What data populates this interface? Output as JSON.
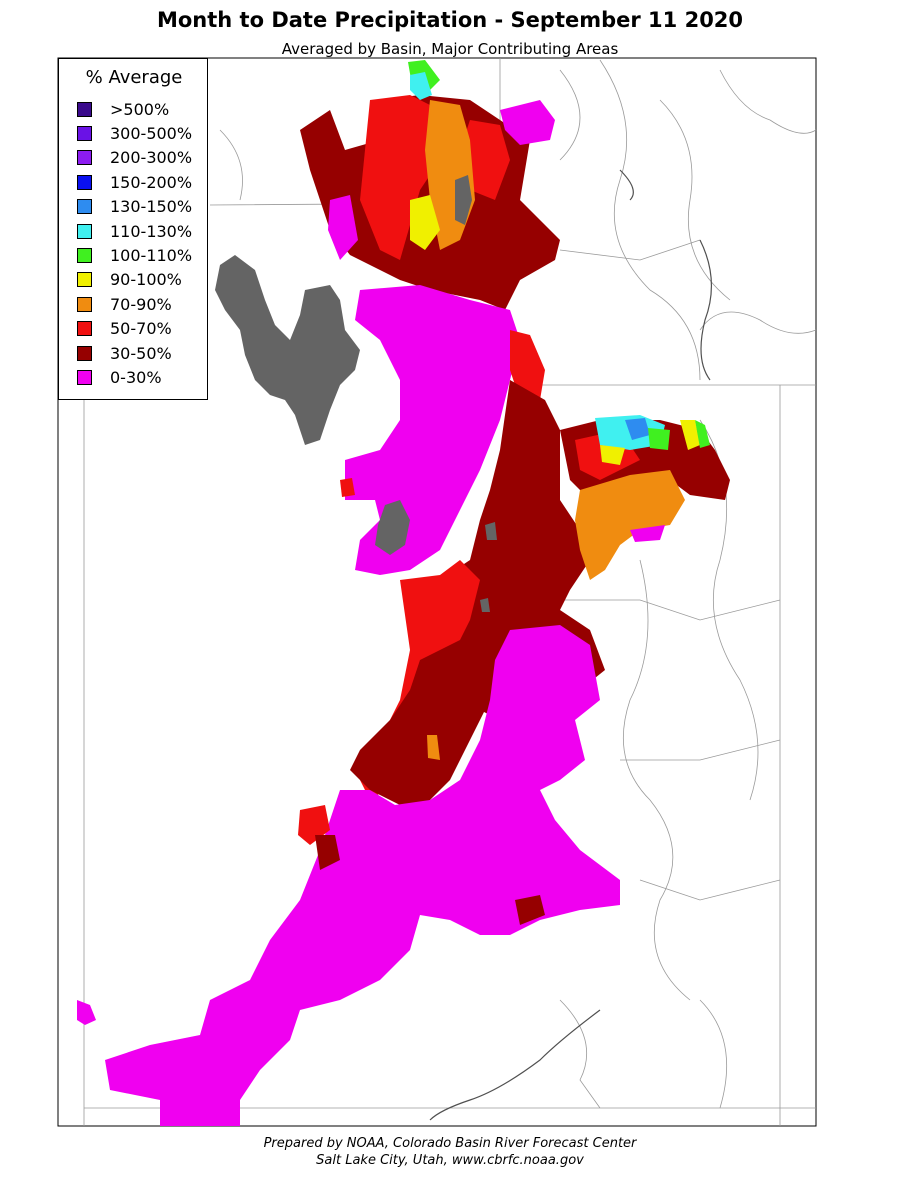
{
  "title": "Month to Date Precipitation - September 11 2020",
  "subtitle": "Averaged by Basin, Major Contributing Areas",
  "legend": {
    "title": "% Average",
    "items": [
      {
        "label": ">500%",
        "color": "#3a0a8c"
      },
      {
        "label": "300-500%",
        "color": "#6a12e6"
      },
      {
        "label": "200-300%",
        "color": "#8c1cf0"
      },
      {
        "label": "150-200%",
        "color": "#0a10f0"
      },
      {
        "label": "130-150%",
        "color": "#2e8cf0"
      },
      {
        "label": "110-130%",
        "color": "#40f0f0"
      },
      {
        "label": "100-110%",
        "color": "#40f020"
      },
      {
        "label": "90-100%",
        "color": "#f0f000"
      },
      {
        "label": "70-90%",
        "color": "#f08c10"
      },
      {
        "label": "50-70%",
        "color": "#f01010"
      },
      {
        "label": "30-50%",
        "color": "#960000"
      },
      {
        "label": "0-30%",
        "color": "#f000f0"
      }
    ]
  },
  "lake_color": "#646464",
  "footer": {
    "line1": "Prepared by NOAA, Colorado Basin River Forecast Center",
    "line2": "Salt Lake City, Utah, www.cbrfc.noaa.gov"
  }
}
